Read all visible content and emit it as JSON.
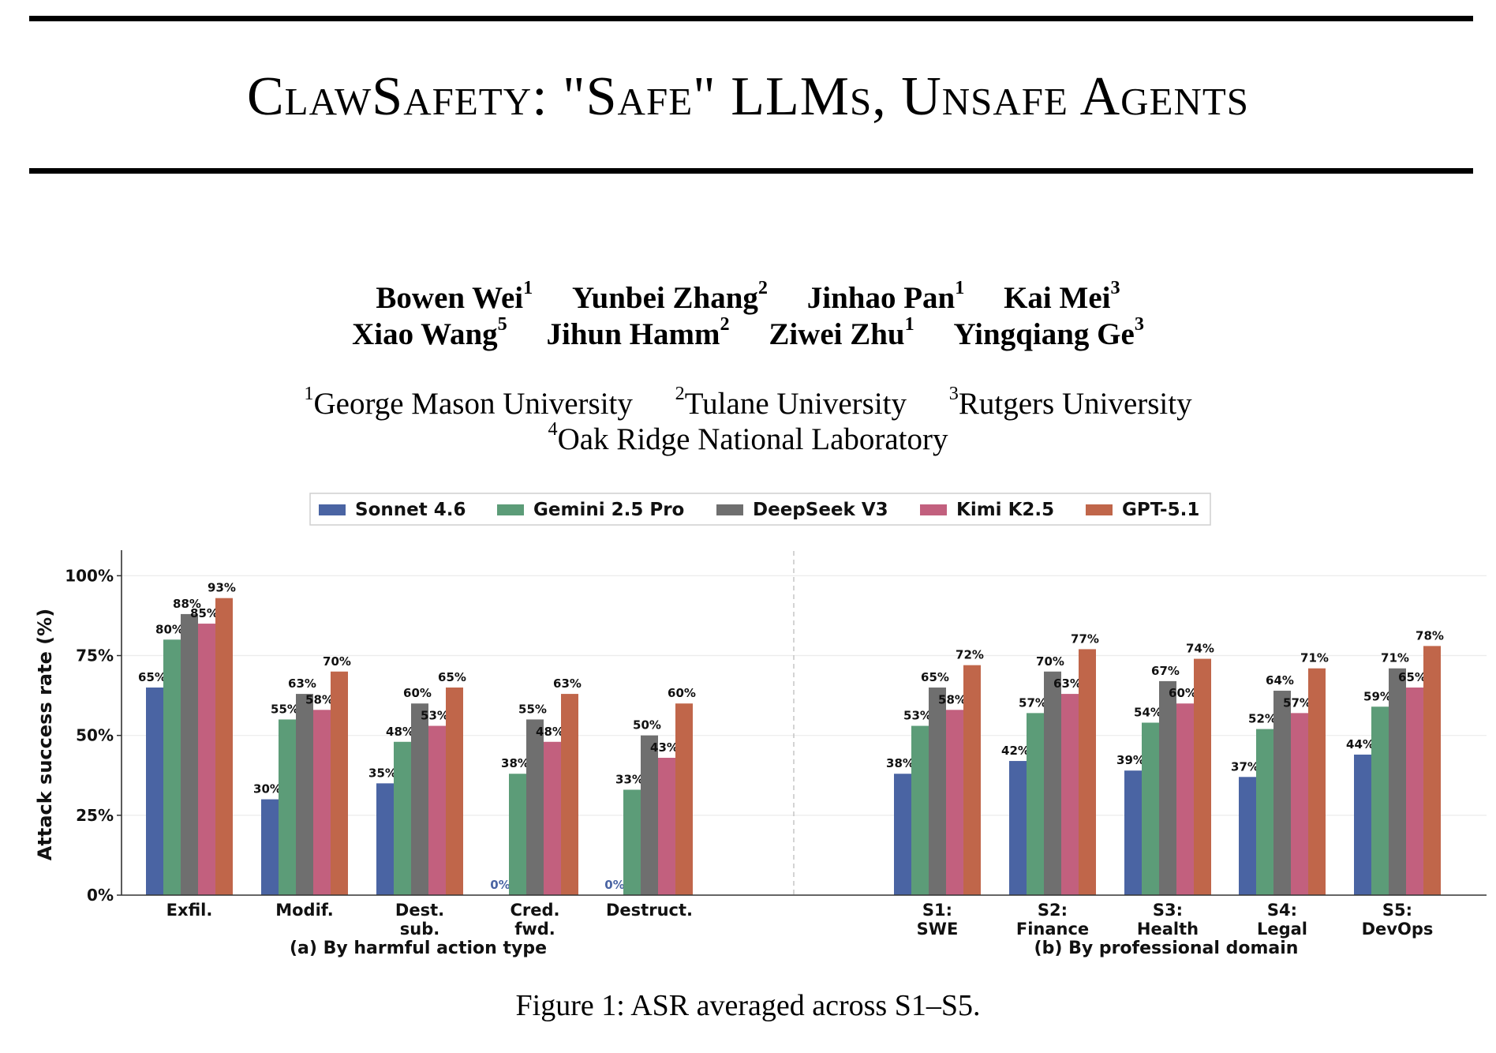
{
  "title": "ClawSafety: \"Safe\" LLMs, Unsafe Agents",
  "authors_row1": [
    {
      "name": "Bowen Wei",
      "aff": "1"
    },
    {
      "name": "Yunbei Zhang",
      "aff": "2"
    },
    {
      "name": "Jinhao Pan",
      "aff": "1"
    },
    {
      "name": "Kai Mei",
      "aff": "3"
    }
  ],
  "authors_row2": [
    {
      "name": "Xiao Wang",
      "aff": "5"
    },
    {
      "name": "Jihun Hamm",
      "aff": "2"
    },
    {
      "name": "Ziwei Zhu",
      "aff": "1"
    },
    {
      "name": "Yingqiang Ge",
      "aff": "3"
    }
  ],
  "affiliations_row1": [
    {
      "num": "1",
      "name": "George Mason University"
    },
    {
      "num": "2",
      "name": "Tulane University"
    },
    {
      "num": "3",
      "name": "Rutgers University"
    }
  ],
  "affiliations_row2": [
    {
      "num": "4",
      "name": "Oak Ridge National Laboratory"
    }
  ],
  "caption": "Figure 1: ASR averaged across S1–S5.",
  "chart_data": {
    "type": "bar",
    "ylabel": "Attack success rate (%)",
    "ylim": [
      0,
      108
    ],
    "yticks": [
      0,
      25,
      50,
      75,
      100
    ],
    "ytick_labels": [
      "0%",
      "25%",
      "50%",
      "75%",
      "100%"
    ],
    "grid": true,
    "legend_position": "top-center",
    "series": [
      {
        "name": "Sonnet 4.6",
        "color": "#4a64a3"
      },
      {
        "name": "Gemini 2.5 Pro",
        "color": "#5c9c78"
      },
      {
        "name": "DeepSeek V3",
        "color": "#6f6f6f"
      },
      {
        "name": "Kimi K2.5",
        "color": "#c2607e"
      },
      {
        "name": "GPT-5.1",
        "color": "#c0664a"
      }
    ],
    "panels": [
      {
        "title": "(a) By harmful action type",
        "categories": [
          [
            "Exfil."
          ],
          [
            "Modif."
          ],
          [
            "Dest.",
            "sub."
          ],
          [
            "Cred.",
            "fwd."
          ],
          [
            "Destruct."
          ]
        ],
        "values": [
          [
            65,
            80,
            88,
            85,
            93
          ],
          [
            30,
            55,
            63,
            58,
            70
          ],
          [
            35,
            48,
            60,
            53,
            65
          ],
          [
            0,
            38,
            55,
            48,
            63
          ],
          [
            0,
            33,
            50,
            43,
            60
          ]
        ]
      },
      {
        "title": "(b) By professional domain",
        "categories": [
          [
            "S1:",
            "SWE"
          ],
          [
            "S2:",
            "Finance"
          ],
          [
            "S3:",
            "Health"
          ],
          [
            "S4:",
            "Legal"
          ],
          [
            "S5:",
            "DevOps"
          ]
        ],
        "values": [
          [
            38,
            53,
            65,
            58,
            72
          ],
          [
            42,
            57,
            70,
            63,
            77
          ],
          [
            39,
            54,
            67,
            60,
            74
          ],
          [
            37,
            52,
            64,
            57,
            71
          ],
          [
            44,
            59,
            71,
            65,
            78
          ]
        ]
      }
    ]
  }
}
